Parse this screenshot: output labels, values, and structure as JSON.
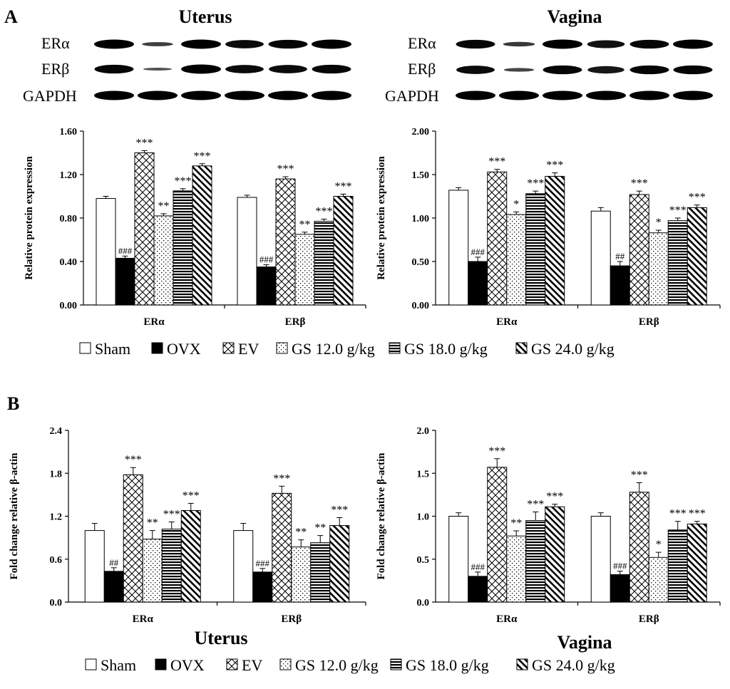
{
  "panels": {
    "a": "A",
    "b": "B"
  },
  "blots": [
    {
      "title": "Uterus",
      "labels": [
        "ERα",
        "ERβ",
        "GAPDH"
      ]
    },
    {
      "title": "Vagina",
      "labels": [
        "ERα",
        "ERβ",
        "GAPDH"
      ]
    }
  ],
  "subtitles": {
    "uterus": "Uterus",
    "vagina": "Vagina"
  },
  "legend": [
    "Sham",
    "OVX",
    "EV",
    "GS 12.0 g/kg",
    "GS 18.0 g/kg",
    "GS 24.0 g/kg"
  ],
  "chart_data": [
    {
      "id": "a-uterus",
      "type": "bar",
      "ylabel": "Relative protein expression",
      "ylim": [
        0,
        1.6
      ],
      "yticks": [
        "0.00",
        "0.40",
        "0.80",
        "1.20",
        "1.60"
      ],
      "categories": [
        "ERα",
        "ERβ"
      ],
      "series": [
        {
          "name": "Sham",
          "values": [
            0.98,
            0.99
          ],
          "errors": [
            0.02,
            0.02
          ],
          "sig": [
            "",
            ""
          ]
        },
        {
          "name": "OVX",
          "values": [
            0.43,
            0.35
          ],
          "errors": [
            0.02,
            0.02
          ],
          "sig": [
            "###",
            "###"
          ]
        },
        {
          "name": "EV",
          "values": [
            1.4,
            1.16
          ],
          "errors": [
            0.02,
            0.02
          ],
          "sig": [
            "***",
            "***"
          ]
        },
        {
          "name": "GS 12.0 g/kg",
          "values": [
            0.82,
            0.65
          ],
          "errors": [
            0.02,
            0.02
          ],
          "sig": [
            "**",
            "**"
          ]
        },
        {
          "name": "GS 18.0 g/kg",
          "values": [
            1.05,
            0.77
          ],
          "errors": [
            0.02,
            0.02
          ],
          "sig": [
            "***",
            "***"
          ]
        },
        {
          "name": "GS 24.0 g/kg",
          "values": [
            1.28,
            1.0
          ],
          "errors": [
            0.02,
            0.02
          ],
          "sig": [
            "***",
            "***"
          ]
        }
      ]
    },
    {
      "id": "a-vagina",
      "type": "bar",
      "ylabel": "Relative protein expression",
      "ylim": [
        0,
        2.0
      ],
      "yticks": [
        "0.00",
        "0.50",
        "1.00",
        "1.50",
        "2.00"
      ],
      "categories": [
        "ERα",
        "ERβ"
      ],
      "series": [
        {
          "name": "Sham",
          "values": [
            1.32,
            1.08
          ],
          "errors": [
            0.03,
            0.04
          ],
          "sig": [
            "",
            ""
          ]
        },
        {
          "name": "OVX",
          "values": [
            0.5,
            0.45
          ],
          "errors": [
            0.05,
            0.05
          ],
          "sig": [
            "###",
            "##"
          ]
        },
        {
          "name": "EV",
          "values": [
            1.53,
            1.27
          ],
          "errors": [
            0.03,
            0.04
          ],
          "sig": [
            "***",
            "***"
          ]
        },
        {
          "name": "GS 12.0 g/kg",
          "values": [
            1.04,
            0.83
          ],
          "errors": [
            0.03,
            0.03
          ],
          "sig": [
            "*",
            "*"
          ]
        },
        {
          "name": "GS 18.0 g/kg",
          "values": [
            1.28,
            0.97
          ],
          "errors": [
            0.03,
            0.03
          ],
          "sig": [
            "***",
            "***"
          ]
        },
        {
          "name": "GS 24.0 g/kg",
          "values": [
            1.48,
            1.12
          ],
          "errors": [
            0.04,
            0.03
          ],
          "sig": [
            "***",
            "***"
          ]
        }
      ]
    },
    {
      "id": "b-uterus",
      "type": "bar",
      "ylabel": "Fold change relative β-actin",
      "ylim": [
        0,
        2.4
      ],
      "yticks": [
        "0.0",
        "0.6",
        "1.2",
        "1.8",
        "2.4"
      ],
      "categories": [
        "ERα",
        "ERβ"
      ],
      "series": [
        {
          "name": "Sham",
          "values": [
            1.0,
            1.0
          ],
          "errors": [
            0.1,
            0.1
          ],
          "sig": [
            "",
            ""
          ]
        },
        {
          "name": "OVX",
          "values": [
            0.43,
            0.42
          ],
          "errors": [
            0.05,
            0.05
          ],
          "sig": [
            "##",
            "###"
          ]
        },
        {
          "name": "EV",
          "values": [
            1.78,
            1.52
          ],
          "errors": [
            0.1,
            0.1
          ],
          "sig": [
            "***",
            "***"
          ]
        },
        {
          "name": "GS 12.0 g/kg",
          "values": [
            0.88,
            0.77
          ],
          "errors": [
            0.12,
            0.1
          ],
          "sig": [
            "**",
            "**"
          ]
        },
        {
          "name": "GS 18.0 g/kg",
          "values": [
            1.02,
            0.83
          ],
          "errors": [
            0.1,
            0.1
          ],
          "sig": [
            "***",
            "**"
          ]
        },
        {
          "name": "GS 24.0 g/kg",
          "values": [
            1.28,
            1.07
          ],
          "errors": [
            0.1,
            0.11
          ],
          "sig": [
            "***",
            "***"
          ]
        }
      ]
    },
    {
      "id": "b-vagina",
      "type": "bar",
      "ylabel": "Fold change relative β-actin",
      "ylim": [
        0,
        2.0
      ],
      "yticks": [
        "0.0",
        "0.5",
        "1.0",
        "1.5",
        "2.0"
      ],
      "categories": [
        "ERα",
        "ERβ"
      ],
      "series": [
        {
          "name": "Sham",
          "values": [
            1.0,
            1.0
          ],
          "errors": [
            0.04,
            0.04
          ],
          "sig": [
            "",
            ""
          ]
        },
        {
          "name": "OVX",
          "values": [
            0.3,
            0.32
          ],
          "errors": [
            0.05,
            0.04
          ],
          "sig": [
            "###",
            "###"
          ]
        },
        {
          "name": "EV",
          "values": [
            1.57,
            1.28
          ],
          "errors": [
            0.1,
            0.11
          ],
          "sig": [
            "***",
            "***"
          ]
        },
        {
          "name": "GS 12.0 g/kg",
          "values": [
            0.77,
            0.52
          ],
          "errors": [
            0.06,
            0.06
          ],
          "sig": [
            "**",
            "*"
          ]
        },
        {
          "name": "GS 18.0 g/kg",
          "values": [
            0.95,
            0.84
          ],
          "errors": [
            0.1,
            0.1
          ],
          "sig": [
            "***",
            "***"
          ]
        },
        {
          "name": "GS 24.0 g/kg",
          "values": [
            1.11,
            0.91
          ],
          "errors": [
            0.03,
            0.03
          ],
          "sig": [
            "***",
            "***"
          ]
        }
      ]
    }
  ]
}
